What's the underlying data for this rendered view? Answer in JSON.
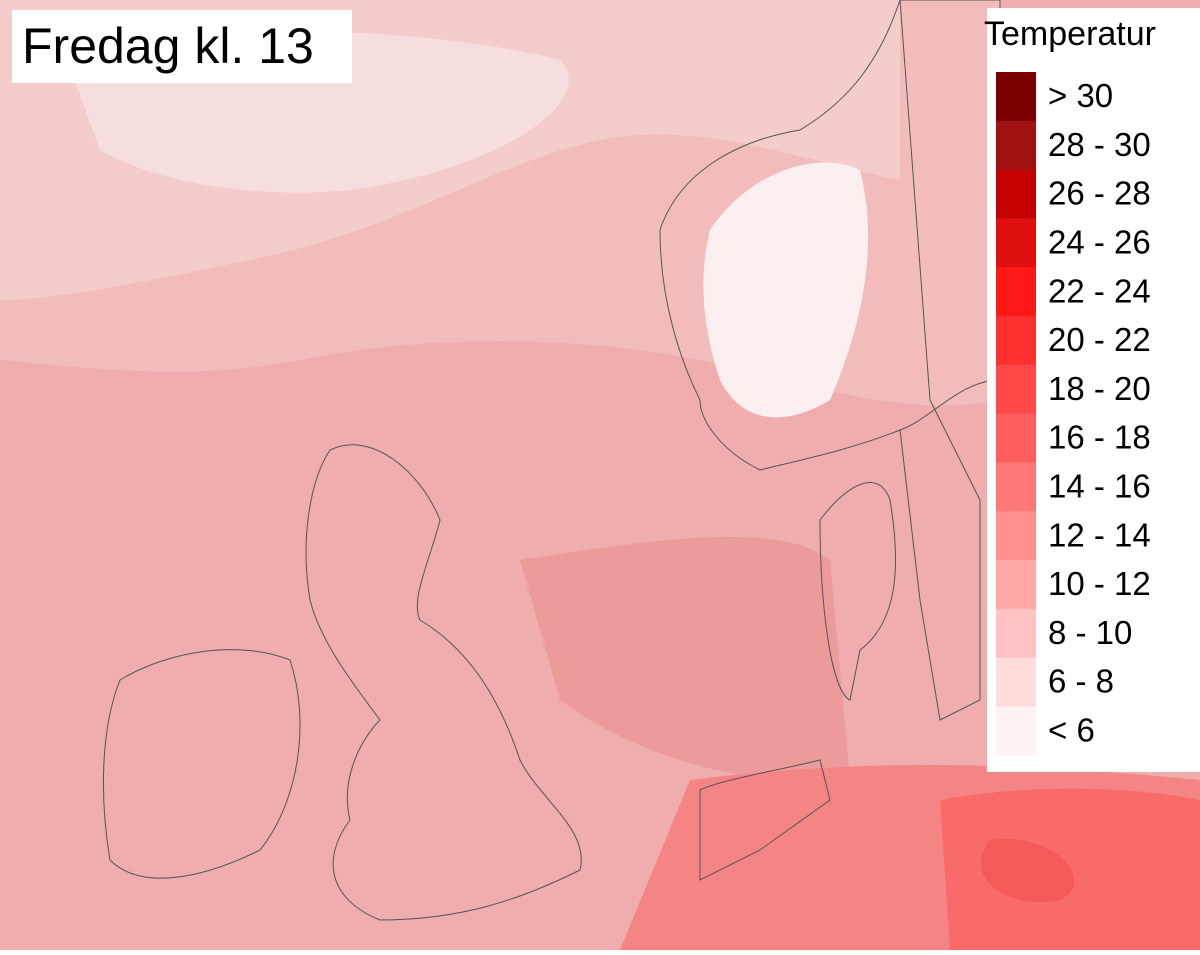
{
  "title": "Fredag kl. 13",
  "legend": {
    "title": "Temperatur",
    "items": [
      {
        "label": "> 30",
        "color": "#7a0000"
      },
      {
        "label": "28 - 30",
        "color": "#a01212"
      },
      {
        "label": "26 - 28",
        "color": "#c40000"
      },
      {
        "label": "24 - 26",
        "color": "#e01010"
      },
      {
        "label": "22 - 24",
        "color": "#ff1818"
      },
      {
        "label": "20 - 22",
        "color": "#ff3030"
      },
      {
        "label": "18 - 20",
        "color": "#ff4848"
      },
      {
        "label": "16 - 18",
        "color": "#ff5e5e"
      },
      {
        "label": "14 - 16",
        "color": "#ff7878"
      },
      {
        "label": "12 - 14",
        "color": "#ff9090"
      },
      {
        "label": "10 - 12",
        "color": "#ffa8a8"
      },
      {
        "label": "8 - 10",
        "color": "#ffc2c2"
      },
      {
        "label": "6 - 8",
        "color": "#ffdcdc"
      },
      {
        "label": "< 6",
        "color": "#fff2f2"
      }
    ]
  }
}
